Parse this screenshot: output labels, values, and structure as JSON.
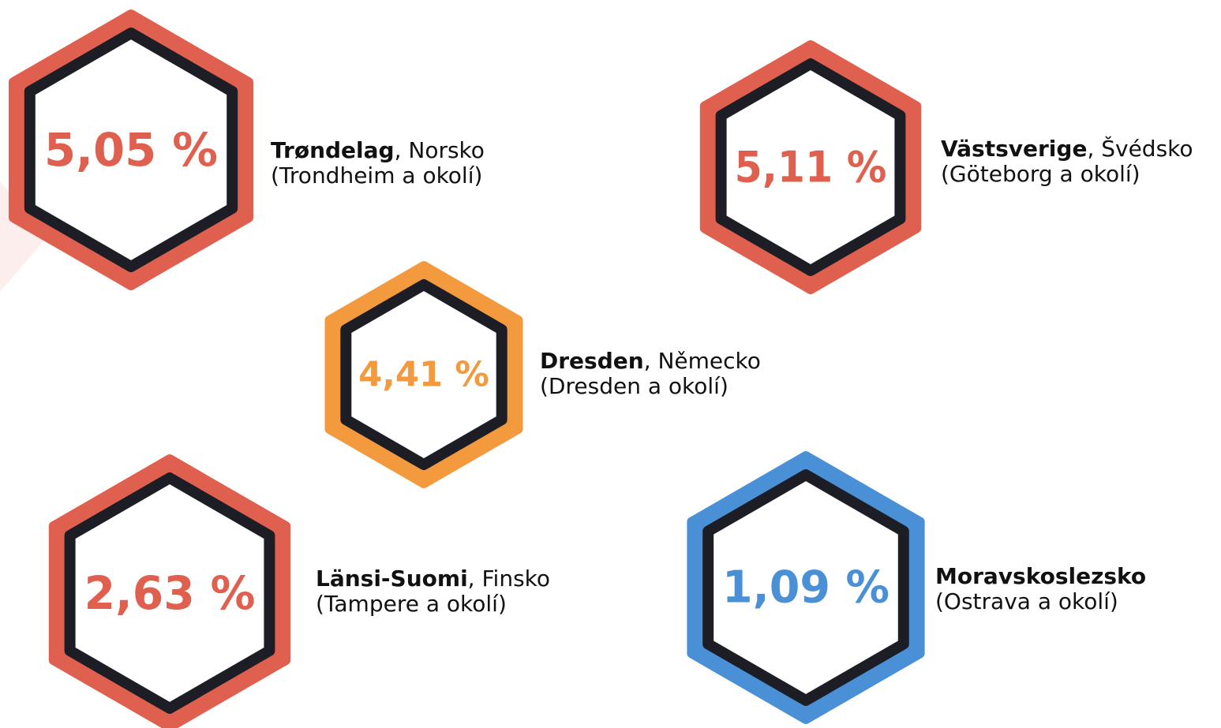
{
  "items": [
    {
      "value": "5,05 %",
      "name": "Trøndelag",
      "rest": ", Norsko",
      "sub": "(Trondheim a okolí)",
      "color": "#e0604f"
    },
    {
      "value": "5,11 %",
      "name": "Västsverige",
      "rest": ", Švédsko",
      "sub": "(Göteborg a okolí)",
      "color": "#e0604f"
    },
    {
      "value": "4,41 %",
      "name": "Dresden",
      "rest": ", Německo",
      "sub": "(Dresden a okolí)",
      "color": "#f39a3e"
    },
    {
      "value": "2,63 %",
      "name": "Länsi-Suomi",
      "rest": ", Finsko",
      "sub": "(Tampere a okolí)",
      "color": "#e0604f"
    },
    {
      "value": "1,09 %",
      "name": "Moravskoslezsko",
      "sub": "(Ostrava a okolí)",
      "color": "#4a90d6"
    }
  ]
}
